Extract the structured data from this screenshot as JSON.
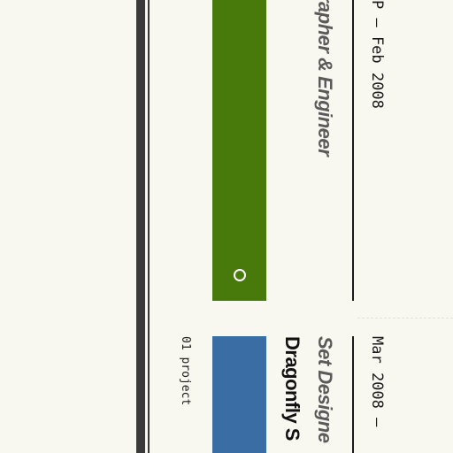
{
  "colors": {
    "background": "#f8f7f0",
    "rail": "#3a3a3a",
    "entry_1_bar": "#477a0a",
    "entry_2_bar": "#396da3"
  },
  "entries": [
    {
      "role": "rapher & Engineer",
      "date_range": "P – Feb 2008"
    },
    {
      "title": "Dragonfly S",
      "role": "Set Designe",
      "date_range": "Mar 2008 – "
    }
  ],
  "count_label": "01 project",
  "handle_icon": "circle-handle-icon"
}
